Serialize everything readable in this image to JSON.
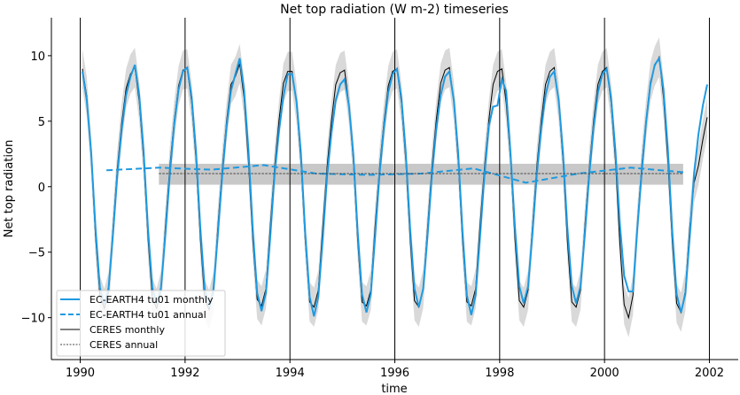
{
  "chart_data": {
    "type": "line",
    "title": "Net top radiation (W m-2) timeseries",
    "xlabel": "time",
    "ylabel": "Net top radiation",
    "xlim": [
      1989.45,
      2002.55
    ],
    "ylim": [
      -13.2,
      12.9
    ],
    "xticks": [
      1990,
      1992,
      1994,
      1996,
      1998,
      2000,
      2002
    ],
    "xtick_labels": [
      "1990",
      "1992",
      "1994",
      "1996",
      "1998",
      "2000",
      "2002"
    ],
    "yticks": [
      -10,
      -5,
      0,
      5,
      10
    ],
    "ytick_labels": [
      "−10",
      "−5",
      "0",
      "5",
      "10"
    ],
    "vertical_lines_at": [
      1990,
      1992,
      1994,
      1996,
      1998,
      2000,
      2002
    ],
    "legend_position": "lower-left",
    "colors": {
      "model": "#1f9ae0",
      "ceres": "#000000",
      "ceres_annual": "#444444",
      "spread": "#d9d9d9",
      "band": "#c8c8c8"
    },
    "monthly_start_year": 1990,
    "series": [
      {
        "name": "EC-EARTH4 tu01 monthly",
        "style": "solid",
        "values_by_year": [
          [
            8.8,
            6.6,
            2.6,
            -3.2,
            -7.7,
            -9.0,
            -7.7,
            -3.6,
            0.9,
            4.4,
            7.0,
            8.4
          ],
          [
            9.3,
            7.0,
            2.8,
            -3.2,
            -7.7,
            -9.0,
            -7.7,
            -3.6,
            0.9,
            4.7,
            7.4,
            8.8
          ],
          [
            9.1,
            6.8,
            2.7,
            -3.2,
            -7.8,
            -9.2,
            -7.8,
            -3.7,
            0.9,
            4.6,
            7.3,
            8.6
          ],
          [
            9.8,
            7.4,
            2.9,
            -3.3,
            -8.1,
            -9.5,
            -8.1,
            -3.8,
            1.0,
            4.3,
            6.9,
            8.6
          ],
          [
            8.6,
            6.5,
            2.6,
            -3.5,
            -8.4,
            -9.9,
            -8.4,
            -4.0,
            0.8,
            4.1,
            6.6,
            7.8
          ],
          [
            8.2,
            6.2,
            2.5,
            -3.4,
            -8.2,
            -9.6,
            -8.2,
            -3.8,
            0.9,
            4.5,
            7.2,
            8.6
          ],
          [
            9.0,
            6.8,
            2.7,
            -3.2,
            -7.8,
            -9.2,
            -7.8,
            -3.7,
            0.9,
            4.4,
            7.0,
            8.4
          ],
          [
            8.8,
            6.6,
            2.6,
            -3.4,
            -8.3,
            -9.8,
            -8.3,
            -3.9,
            0.8,
            4.6,
            6.1,
            6.2
          ],
          [
            8.2,
            7.3,
            2.5,
            -3.1,
            -7.6,
            -8.9,
            -7.6,
            -3.6,
            0.9,
            4.4,
            7.0,
            8.4
          ],
          [
            8.8,
            6.6,
            2.6,
            -3.1,
            -7.6,
            -8.9,
            -7.6,
            -3.6,
            0.9,
            4.5,
            7.2,
            8.6
          ],
          [
            9.0,
            6.8,
            2.7,
            -2.8,
            -6.8,
            -8.0,
            -8.0,
            -3.2,
            1.0,
            4.9,
            7.8,
            9.3
          ],
          [
            9.8,
            7.4,
            2.9,
            -3.4,
            -8.2,
            -9.6,
            -8.2,
            -3.8,
            1.0,
            4.0,
            6.2,
            7.8
          ]
        ]
      },
      {
        "name": "EC-EARTH4 tu01 annual",
        "style": "dashed",
        "x": [
          1990.5,
          1991.5,
          1992.5,
          1993.5,
          1994.5,
          1995.5,
          1996.5,
          1997.5,
          1998.5,
          1999.5,
          2000.5,
          2001.5
        ],
        "values": [
          1.25,
          1.45,
          1.3,
          1.65,
          1.0,
          0.9,
          1.0,
          1.4,
          0.3,
          1.0,
          1.45,
          1.1
        ]
      },
      {
        "name": "CERES monthly",
        "style": "solid",
        "spread": 1.5,
        "values_by_year": [
          [
            9.0,
            6.9,
            2.3,
            -3.8,
            -8.3,
            -9.3,
            -8.0,
            -3.2,
            1.4,
            4.9,
            7.5,
            8.6
          ],
          [
            9.1,
            6.5,
            2.2,
            -3.9,
            -8.5,
            -9.3,
            -7.9,
            -3.0,
            1.5,
            5.0,
            7.7,
            8.9
          ],
          [
            9.0,
            6.4,
            2.1,
            -4.0,
            -8.6,
            -9.4,
            -8.0,
            -3.1,
            1.4,
            5.0,
            7.8,
            8.4
          ],
          [
            9.4,
            6.8,
            2.0,
            -4.1,
            -8.6,
            -9.1,
            -7.8,
            -3.0,
            1.5,
            5.1,
            7.9,
            8.8
          ],
          [
            8.8,
            6.4,
            2.0,
            -4.0,
            -8.8,
            -9.2,
            -7.9,
            -3.1,
            1.5,
            5.0,
            7.8,
            8.7
          ],
          [
            8.9,
            6.3,
            2.0,
            -4.1,
            -8.8,
            -9.1,
            -7.9,
            -3.0,
            1.4,
            4.9,
            7.7,
            8.8
          ],
          [
            9.0,
            6.4,
            2.1,
            -4.0,
            -8.7,
            -9.2,
            -7.8,
            -3.1,
            1.5,
            5.1,
            7.9,
            8.9
          ],
          [
            9.1,
            6.5,
            2.0,
            -4.1,
            -8.8,
            -9.1,
            -7.8,
            -3.0,
            1.4,
            5.0,
            7.8,
            8.8
          ],
          [
            9.0,
            6.4,
            2.1,
            -4.0,
            -8.7,
            -9.2,
            -7.9,
            -3.1,
            1.5,
            5.0,
            7.8,
            8.8
          ],
          [
            9.1,
            6.5,
            2.0,
            -4.1,
            -8.8,
            -9.2,
            -7.9,
            -3.0,
            1.4,
            5.0,
            7.8,
            8.8
          ],
          [
            9.1,
            6.4,
            2.0,
            -4.3,
            -9.0,
            -10.0,
            -8.3,
            -3.0,
            1.5,
            5.1,
            8.0,
            9.2
          ],
          [
            9.9,
            6.8,
            2.0,
            -4.2,
            -8.9,
            -9.6,
            -8.0,
            -3.1,
            0.3,
            1.6,
            3.6,
            5.3
          ]
        ]
      },
      {
        "name": "CERES annual",
        "style": "dotted",
        "x": [
          1991.5,
          2001.5
        ],
        "values": [
          1.0,
          1.0
        ],
        "band": [
          0.15,
          1.75
        ]
      }
    ]
  }
}
